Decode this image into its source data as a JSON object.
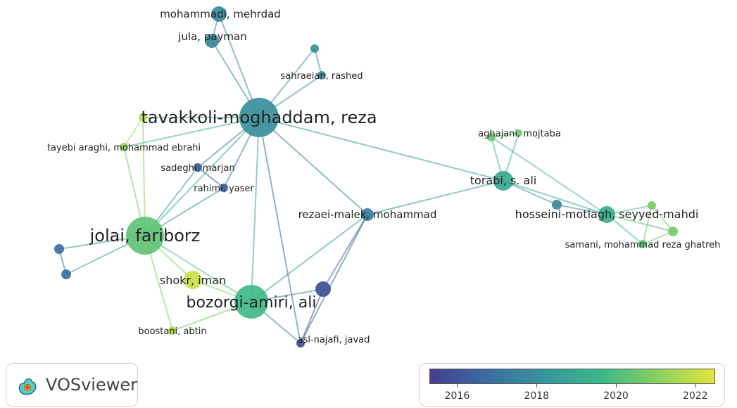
{
  "authors": [
    {
      "key": "tavakkoli",
      "label": "tavakkoli-moghaddam, reza",
      "year": 2018.0
    },
    {
      "key": "mohammadi",
      "label": "mohammadi, mehrdad",
      "year": 2017.8
    },
    {
      "key": "jula",
      "label": "jula, payman",
      "year": 2017.7
    },
    {
      "key": "unlabeled_top",
      "label": "",
      "year": 2018.1
    },
    {
      "key": "sahraeian",
      "label": "sahraeian, rashed",
      "year": 2017.9
    },
    {
      "key": "tayebi_top",
      "label": "",
      "year": 2021.8
    },
    {
      "key": "tayebi",
      "label": "tayebi araghi, mohammad ebrahi",
      "year": 2021.3
    },
    {
      "key": "sadeghi",
      "label": "sadeghi, marjan",
      "year": 2016.3
    },
    {
      "key": "rahimi",
      "label": "rahimi, yaser",
      "year": 2016.3
    },
    {
      "key": "jolai",
      "label": "jolai, fariborz",
      "year": 2020.3
    },
    {
      "key": "left_a",
      "label": "",
      "year": 2016.9
    },
    {
      "key": "left_b",
      "label": "",
      "year": 2016.9
    },
    {
      "key": "shokr",
      "label": "shokr, iman",
      "year": 2022.1
    },
    {
      "key": "bozorgi",
      "label": "bozorgi-amiri, ali",
      "year": 2019.7
    },
    {
      "key": "boostani",
      "label": "boostani, abtin",
      "year": 2021.7
    },
    {
      "key": "purple_right",
      "label": "",
      "year": 2015.8
    },
    {
      "key": "asl",
      "label": "asl-najafi, javad",
      "year": 2015.8
    },
    {
      "key": "rezaei",
      "label": "rezaei-malek, mohammad",
      "year": 2017.4
    },
    {
      "key": "torabi",
      "label": "torabi, s. ali",
      "year": 2019.0
    },
    {
      "key": "aghajani",
      "label": "aghajani, mojtaba",
      "year": 2020.6
    },
    {
      "key": "aghajani_b",
      "label": "",
      "year": 2020.6
    },
    {
      "key": "hosseini_small",
      "label": "",
      "year": 2017.6
    },
    {
      "key": "hosseini",
      "label": "hosseini-motlagh, seyyed-mahdi",
      "year": 2019.3
    },
    {
      "key": "green_top",
      "label": "",
      "year": 2020.8
    },
    {
      "key": "green_right",
      "label": "",
      "year": 2020.8
    },
    {
      "key": "samani",
      "label": "samani, mohammad reza ghatreh",
      "year": 2020.3
    }
  ],
  "links": [
    [
      "tavakkoli",
      "mohammadi"
    ],
    [
      "tavakkoli",
      "jula"
    ],
    [
      "tavakkoli",
      "unlabeled_top"
    ],
    [
      "tavakkoli",
      "sahraeian"
    ],
    [
      "tavakkoli",
      "tayebi_top"
    ],
    [
      "tavakkoli",
      "tayebi"
    ],
    [
      "tavakkoli",
      "sadeghi"
    ],
    [
      "tavakkoli",
      "rahimi"
    ],
    [
      "tavakkoli",
      "jolai"
    ],
    [
      "tavakkoli",
      "bozorgi"
    ],
    [
      "tavakkoli",
      "rezaei"
    ],
    [
      "tavakkoli",
      "torabi"
    ],
    [
      "tavakkoli",
      "asl"
    ],
    [
      "unlabeled_top",
      "sahraeian"
    ],
    [
      "mohammadi",
      "jula"
    ],
    [
      "jolai",
      "tayebi"
    ],
    [
      "jolai",
      "tayebi_top"
    ],
    [
      "tayebi",
      "tayebi_top"
    ],
    [
      "jolai",
      "sadeghi"
    ],
    [
      "jolai",
      "rahimi"
    ],
    [
      "sadeghi",
      "rahimi"
    ],
    [
      "jolai",
      "left_a"
    ],
    [
      "jolai",
      "left_b"
    ],
    [
      "left_a",
      "left_b"
    ],
    [
      "jolai",
      "shokr"
    ],
    [
      "jolai",
      "bozorgi"
    ],
    [
      "jolai",
      "boostani"
    ],
    [
      "shokr",
      "bozorgi"
    ],
    [
      "boostani",
      "bozorgi"
    ],
    [
      "bozorgi",
      "purple_right"
    ],
    [
      "bozorgi",
      "asl"
    ],
    [
      "purple_right",
      "asl"
    ],
    [
      "bozorgi",
      "rezaei"
    ],
    [
      "rezaei",
      "purple_right"
    ],
    [
      "rezaei",
      "asl"
    ],
    [
      "rezaei",
      "torabi"
    ],
    [
      "torabi",
      "aghajani"
    ],
    [
      "torabi",
      "aghajani_b"
    ],
    [
      "aghajani",
      "aghajani_b"
    ],
    [
      "torabi",
      "hosseini_small"
    ],
    [
      "torabi",
      "hosseini"
    ],
    [
      "hosseini",
      "hosseini_small"
    ],
    [
      "aghajani",
      "hosseini"
    ],
    [
      "hosseini",
      "green_top"
    ],
    [
      "hosseini",
      "green_right"
    ],
    [
      "hosseini",
      "samani"
    ],
    [
      "green_top",
      "green_right"
    ],
    [
      "green_right",
      "samani"
    ],
    [
      "green_top",
      "samani"
    ]
  ],
  "logo": {
    "text": "VOSviewer"
  },
  "legend": {
    "year_min": 2015.3,
    "year_max": 2022.5,
    "ticks": [
      "2016",
      "2018",
      "2020",
      "2022"
    ],
    "gradient_colors": [
      "#433f8f",
      "#3d6ba1",
      "#38959b",
      "#3cb78a",
      "#88d060",
      "#e6e43c"
    ]
  }
}
